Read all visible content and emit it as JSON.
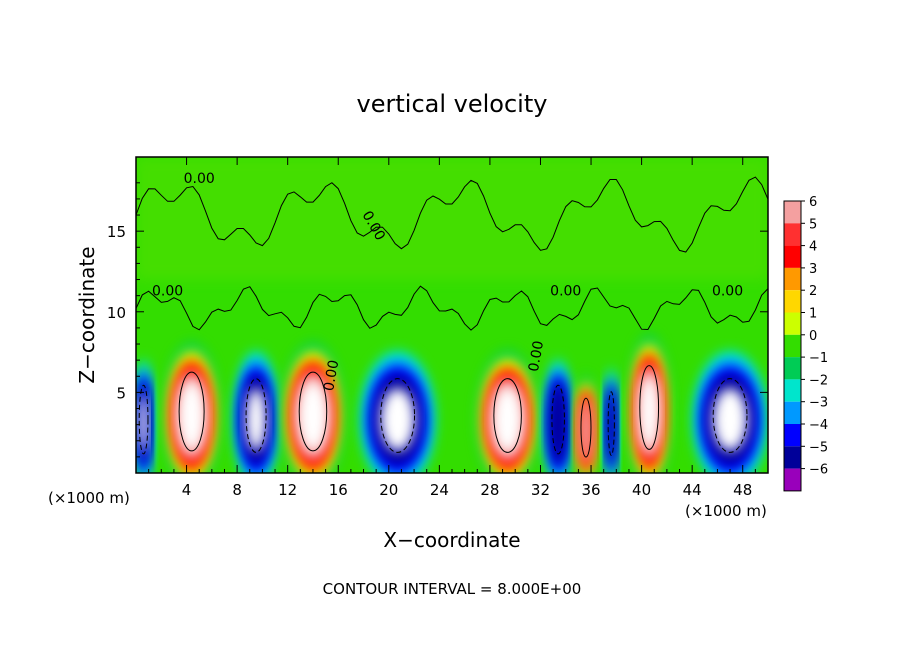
{
  "chart_data": {
    "type": "heatmap",
    "title": "vertical velocity",
    "xlabel": "X−coordinate",
    "ylabel": "Z−coordinate",
    "x_unit_left": "(×1000 m)",
    "x_unit_right": "(×1000 m)",
    "x_ticks": [
      "4",
      "8",
      "12",
      "16",
      "20",
      "24",
      "28",
      "32",
      "36",
      "40",
      "44",
      "48"
    ],
    "y_ticks": [
      "5",
      "10",
      "15"
    ],
    "xlim": [
      0,
      50
    ],
    "ylim": [
      0,
      19.6
    ],
    "colorbar": {
      "levels": [
        "6",
        "5",
        "4",
        "3",
        "2",
        "1",
        "0",
        "−1",
        "−2",
        "−3",
        "−4",
        "−5",
        "−6"
      ],
      "colors": [
        "#f4a0a0",
        "#ff3030",
        "#ff0000",
        "#ff9900",
        "#ffd700",
        "#ccff00",
        "#33dd00",
        "#00cc55",
        "#00e5cc",
        "#0099ff",
        "#0000ff",
        "#000099",
        "#9900bb"
      ]
    },
    "contour_labels": [
      "0.00",
      "0.00",
      "0.00",
      "0.00",
      "0.00",
      "0.00",
      "0.00"
    ],
    "footer": "CONTOUR INTERVAL = 8.000E+00",
    "cells": [
      {
        "x": 0.6,
        "w": 1.4,
        "v": -6,
        "top": 7.0
      },
      {
        "x": 4.4,
        "w": 4.0,
        "v": 6,
        "top": 8.0
      },
      {
        "x": 9.5,
        "w": 3.2,
        "v": -6,
        "top": 7.5
      },
      {
        "x": 14.0,
        "w": 4.4,
        "v": 6,
        "top": 8.0
      },
      {
        "x": 20.7,
        "w": 5.4,
        "v": -6,
        "top": 7.5
      },
      {
        "x": 29.4,
        "w": 4.4,
        "v": 6,
        "top": 7.5
      },
      {
        "x": 33.4,
        "w": 2.0,
        "v": -4,
        "top": 7.0
      },
      {
        "x": 35.6,
        "w": 1.6,
        "v": 4,
        "top": 6.0
      },
      {
        "x": 37.6,
        "w": 1.0,
        "v": -3,
        "top": 6.5
      },
      {
        "x": 40.6,
        "w": 3.0,
        "v": 6,
        "top": 8.5
      },
      {
        "x": 47.0,
        "w": 5.4,
        "v": -6,
        "top": 7.5
      }
    ]
  }
}
